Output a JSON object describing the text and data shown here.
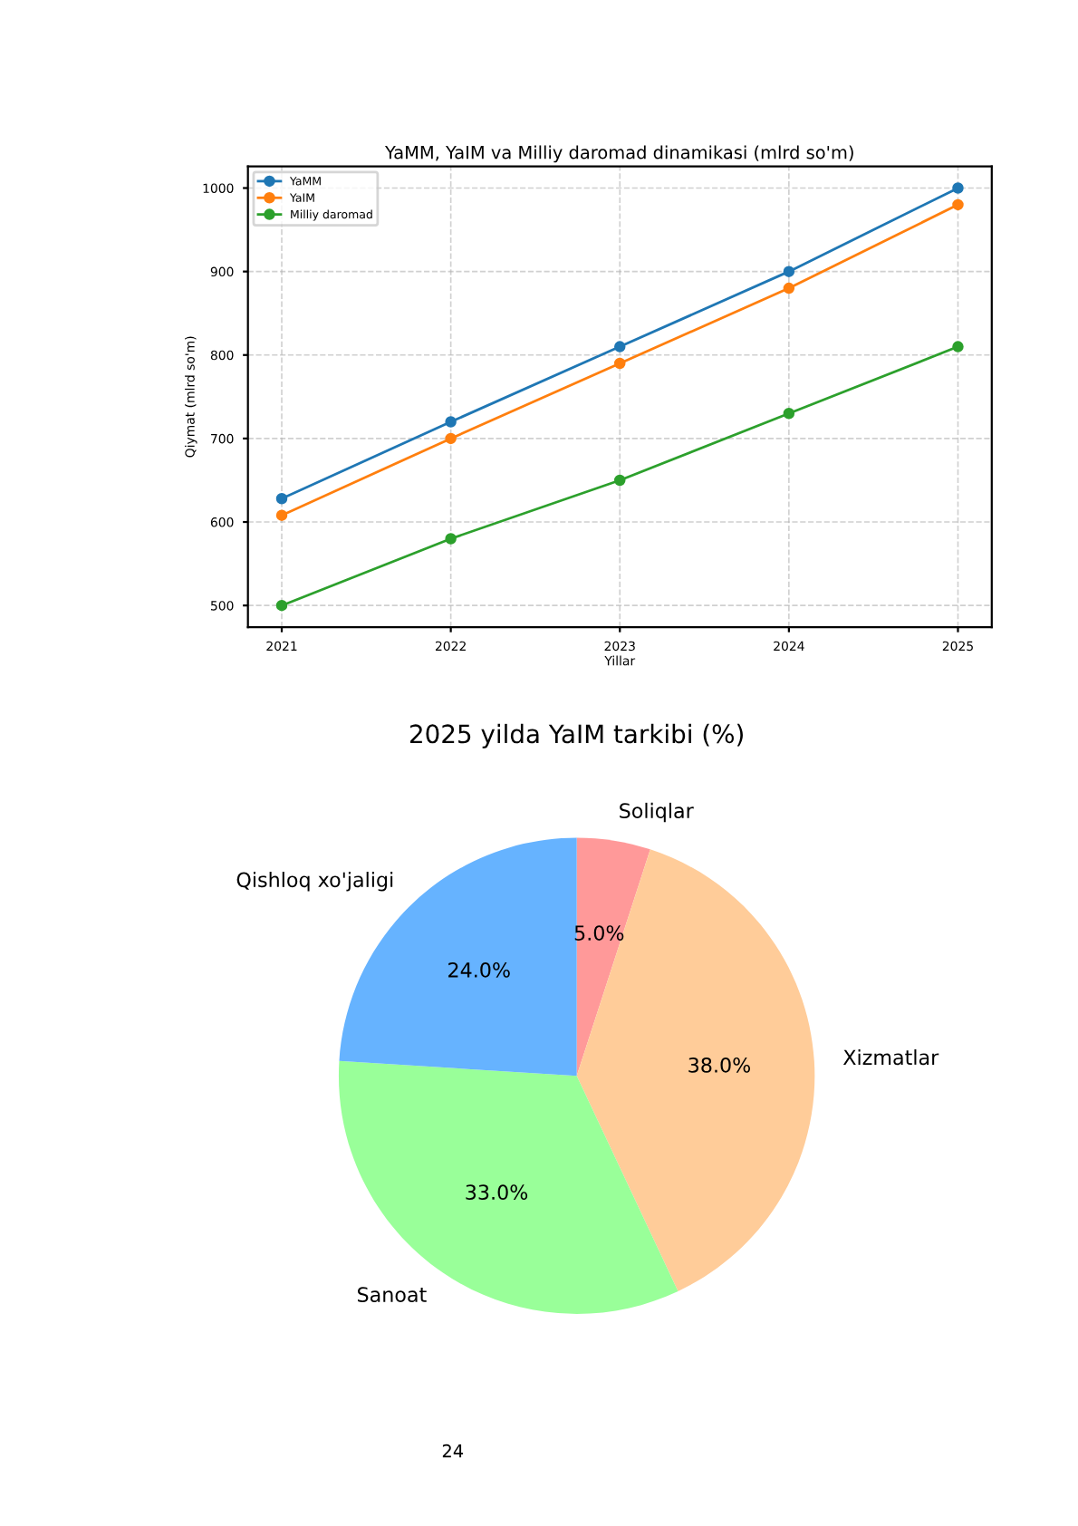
{
  "chart_data": [
    {
      "type": "line",
      "title": "YaMM, YaIM va Milliy daromad dinamikasi (mlrd so'm)",
      "xlabel": "Yillar",
      "ylabel": "Qiymat (mlrd so'm)",
      "x": [
        2021,
        2022,
        2023,
        2024,
        2025
      ],
      "series": [
        {
          "name": "YaMM",
          "color": "#1f77b4",
          "values": [
            628,
            720,
            810,
            900,
            1000
          ]
        },
        {
          "name": "YaIM",
          "color": "#ff7f0e",
          "values": [
            608,
            700,
            790,
            880,
            980
          ]
        },
        {
          "name": "Milliy daromad",
          "color": "#2ca02c",
          "values": [
            500,
            580,
            650,
            730,
            810
          ]
        }
      ],
      "xlim": [
        2020.8,
        2025.2
      ],
      "xticks": [
        2021,
        2022,
        2023,
        2024,
        2025
      ],
      "ylim": [
        474,
        1026
      ],
      "yticks": [
        500,
        600,
        700,
        800,
        900,
        1000
      ],
      "grid": true,
      "legend": "top left",
      "marker": "circle",
      "line_style": "solid"
    },
    {
      "type": "pie",
      "title": "2025 yilda YaIM tarkibi (%)",
      "categories": [
        "Soliqlar",
        "Xizmatlar",
        "Sanoat",
        "Qishloq xo'jaligi"
      ],
      "values": [
        5,
        38,
        33,
        24
      ],
      "colors": [
        "#ff9999",
        "#ffcc99",
        "#99ff99",
        "#66b3ff"
      ],
      "value_labels": [
        "5.0%",
        "38.0%",
        "33.0%",
        "24.0%"
      ],
      "annotations": [
        "24"
      ]
    }
  ]
}
